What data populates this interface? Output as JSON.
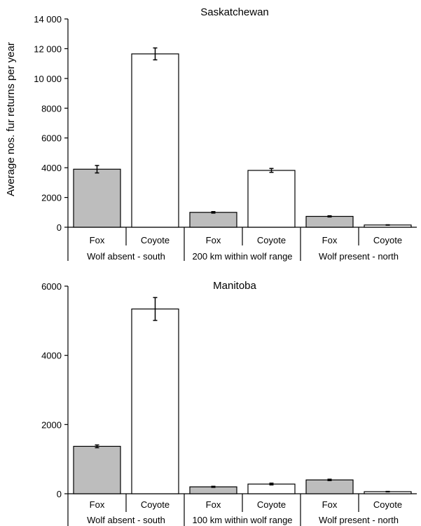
{
  "y_axis_label": "Average nos. fur returns per year",
  "chart_data": [
    {
      "type": "bar",
      "title": "Saskatchewan",
      "xlabel": "",
      "ylabel": "Average nos. fur returns per year",
      "ylim": [
        0,
        14000
      ],
      "yticks": [
        0,
        2000,
        4000,
        6000,
        8000,
        10000,
        12000,
        14000
      ],
      "ytick_labels": [
        "0",
        "2000",
        "4000",
        "6000",
        "8000",
        "10 000",
        "12 000",
        "14 000"
      ],
      "categories": [
        "Fox",
        "Coyote",
        "Fox",
        "Coyote",
        "Fox",
        "Coyote"
      ],
      "groups": [
        "Wolf absent - south",
        "200 km within wolf range",
        "Wolf present - north"
      ],
      "values": [
        3900,
        11650,
        1000,
        3820,
        730,
        150
      ],
      "errors": [
        250,
        400,
        50,
        130,
        40,
        15
      ],
      "colors": [
        "#bdbdbd",
        "#ffffff",
        "#bdbdbd",
        "#ffffff",
        "#bdbdbd",
        "#ffffff"
      ],
      "grid": false
    },
    {
      "type": "bar",
      "title": "Manitoba",
      "xlabel": "",
      "ylabel": "",
      "ylim": [
        0,
        6000
      ],
      "yticks": [
        0,
        2000,
        4000,
        6000
      ],
      "ytick_labels": [
        "0",
        "2000",
        "4000",
        "6000"
      ],
      "categories": [
        "Fox",
        "Coyote",
        "Fox",
        "Coyote",
        "Fox",
        "Coyote"
      ],
      "groups": [
        "Wolf absent - south",
        "100 km within wolf range",
        "Wolf present - north"
      ],
      "values": [
        1370,
        5340,
        200,
        280,
        400,
        60
      ],
      "errors": [
        40,
        330,
        15,
        25,
        20,
        8
      ],
      "colors": [
        "#bdbdbd",
        "#ffffff",
        "#bdbdbd",
        "#ffffff",
        "#bdbdbd",
        "#ffffff"
      ],
      "grid": false
    }
  ]
}
